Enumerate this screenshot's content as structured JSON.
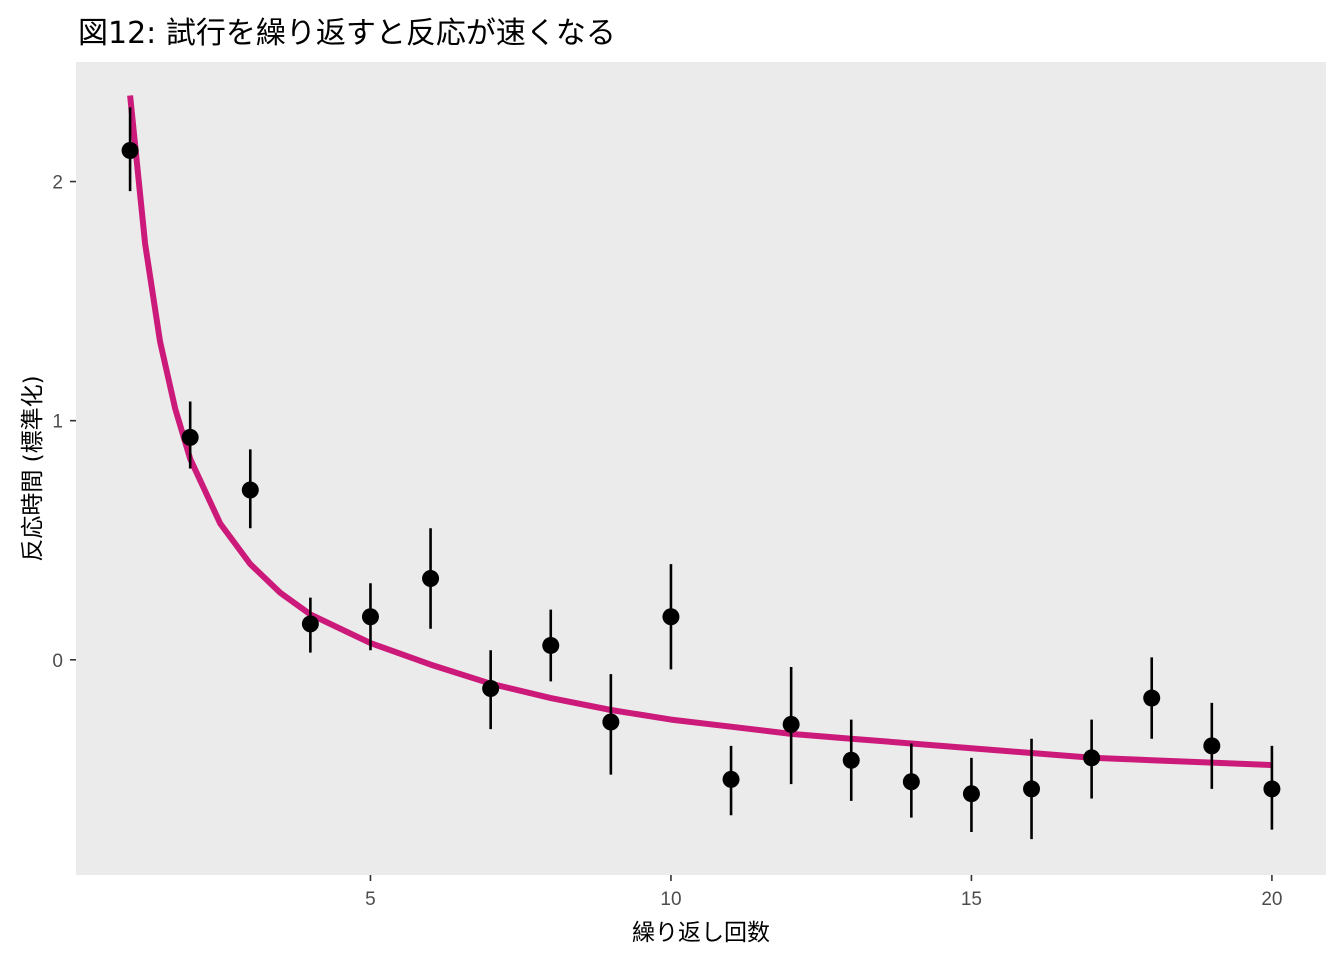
{
  "chart_data": {
    "type": "scatter",
    "title": "図12: 試行を繰り返すと反応が速くなる",
    "xlabel": "繰り返し回数",
    "ylabel": "反応時間 (標準化)",
    "xlim": [
      0.1,
      20.9
    ],
    "ylim": [
      -0.9,
      2.5
    ],
    "x_ticks": [
      5,
      10,
      15,
      20
    ],
    "y_ticks": [
      0,
      1,
      2
    ],
    "grid": false,
    "background": "#ebebeb",
    "series": [
      {
        "type": "pointrange",
        "color": "#000000",
        "points": [
          {
            "x": 1,
            "y": 2.13,
            "ymin": 1.96,
            "ymax": 2.31
          },
          {
            "x": 2,
            "y": 0.93,
            "ymin": 0.8,
            "ymax": 1.08
          },
          {
            "x": 3,
            "y": 0.71,
            "ymin": 0.55,
            "ymax": 0.88
          },
          {
            "x": 4,
            "y": 0.15,
            "ymin": 0.03,
            "ymax": 0.26
          },
          {
            "x": 5,
            "y": 0.18,
            "ymin": 0.04,
            "ymax": 0.32
          },
          {
            "x": 6,
            "y": 0.34,
            "ymin": 0.13,
            "ymax": 0.55
          },
          {
            "x": 7,
            "y": -0.12,
            "ymin": -0.29,
            "ymax": 0.04
          },
          {
            "x": 8,
            "y": 0.06,
            "ymin": -0.09,
            "ymax": 0.21
          },
          {
            "x": 9,
            "y": -0.26,
            "ymin": -0.48,
            "ymax": -0.06
          },
          {
            "x": 10,
            "y": 0.18,
            "ymin": -0.04,
            "ymax": 0.4
          },
          {
            "x": 11,
            "y": -0.5,
            "ymin": -0.65,
            "ymax": -0.36
          },
          {
            "x": 12,
            "y": -0.27,
            "ymin": -0.52,
            "ymax": -0.03
          },
          {
            "x": 13,
            "y": -0.42,
            "ymin": -0.59,
            "ymax": -0.25
          },
          {
            "x": 14,
            "y": -0.51,
            "ymin": -0.66,
            "ymax": -0.35
          },
          {
            "x": 15,
            "y": -0.56,
            "ymin": -0.72,
            "ymax": -0.41
          },
          {
            "x": 16,
            "y": -0.54,
            "ymin": -0.75,
            "ymax": -0.33
          },
          {
            "x": 17,
            "y": -0.41,
            "ymin": -0.58,
            "ymax": -0.25
          },
          {
            "x": 18,
            "y": -0.16,
            "ymin": -0.33,
            "ymax": 0.01
          },
          {
            "x": 19,
            "y": -0.36,
            "ymin": -0.54,
            "ymax": -0.18
          },
          {
            "x": 20,
            "y": -0.54,
            "ymin": -0.71,
            "ymax": -0.36
          }
        ]
      },
      {
        "type": "line",
        "color": "#cc1a7a",
        "x": [
          1,
          1.25,
          1.5,
          1.75,
          2,
          2.5,
          3,
          3.5,
          4,
          5,
          6,
          7,
          8,
          9,
          10,
          11,
          12,
          13,
          14,
          15,
          16,
          17,
          18,
          19,
          20
        ],
        "y": [
          2.36,
          1.74,
          1.33,
          1.05,
          0.84,
          0.57,
          0.4,
          0.28,
          0.19,
          0.07,
          -0.02,
          -0.1,
          -0.16,
          -0.21,
          -0.25,
          -0.28,
          -0.31,
          -0.33,
          -0.35,
          -0.37,
          -0.39,
          -0.41,
          -0.42,
          -0.43,
          -0.44
        ]
      }
    ]
  }
}
